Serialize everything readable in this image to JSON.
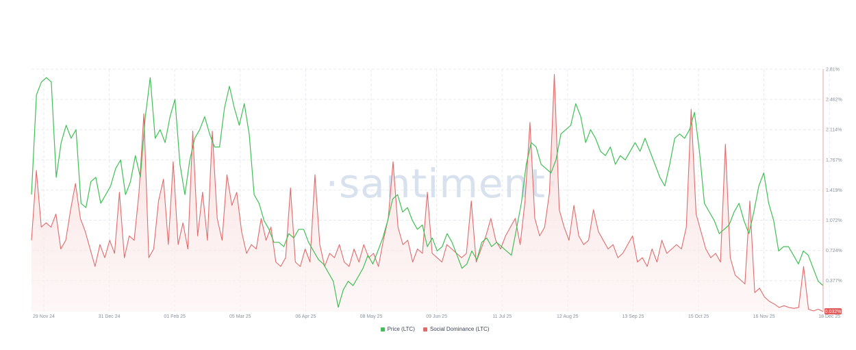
{
  "watermark": "·santiment·",
  "colors": {
    "price": "#3fbf54",
    "social": "#e06a6a",
    "social_fill": "#f7d6d6",
    "grid": "#e6e9ee",
    "axis": "#e9a3a3",
    "badge": "#e05a5a"
  },
  "legend": [
    {
      "label": "Price (LTC)",
      "color": "#3fbf54"
    },
    {
      "label": "Social Dominance (LTC)",
      "color": "#e06a6a"
    }
  ],
  "chart_data": {
    "type": "line",
    "x_tick_labels": [
      "29 Nov 24",
      "31 Dec 24",
      "01 Feb 25",
      "05 Mar 25",
      "06 Apr 25",
      "08 May 25",
      "09 Jun 25",
      "11 Jul 25",
      "12 Aug 25",
      "13 Sep 25",
      "15 Oct 25",
      "16 Nov 25",
      "18 Dec 25"
    ],
    "y_right_tick_labels": [
      "2.81%",
      "2.462%",
      "2.114%",
      "1.767%",
      "1.419%",
      "1.072%",
      "0.724%",
      "0.377%"
    ],
    "current_value_badge": "0.032%",
    "y_right_range": [
      0.032,
      2.81
    ],
    "grid": true,
    "legend_position": "bottom-center",
    "series": [
      {
        "name": "Price (LTC)",
        "axis": "hidden",
        "values": [
          1.4,
          2.55,
          2.7,
          2.75,
          2.7,
          1.6,
          2.0,
          2.2,
          2.05,
          2.15,
          1.3,
          1.25,
          1.55,
          1.6,
          1.3,
          1.4,
          1.5,
          1.7,
          1.8,
          1.4,
          1.55,
          1.85,
          1.6,
          2.3,
          2.75,
          2.05,
          2.15,
          2.0,
          2.3,
          2.5,
          1.75,
          1.4,
          1.8,
          2.05,
          2.15,
          2.3,
          2.1,
          1.95,
          1.95,
          2.4,
          2.65,
          2.4,
          2.2,
          2.45,
          2.1,
          1.4,
          1.3,
          1.1,
          1.0,
          0.85,
          0.85,
          0.8,
          0.95,
          0.9,
          1.0,
          1.0,
          0.85,
          0.75,
          0.65,
          0.6,
          0.5,
          0.4,
          0.1,
          0.3,
          0.4,
          0.35,
          0.45,
          0.55,
          0.7,
          0.6,
          0.75,
          0.9,
          1.1,
          1.35,
          1.4,
          1.2,
          1.25,
          1.1,
          1.0,
          1.05,
          0.8,
          0.9,
          0.75,
          0.8,
          0.95,
          0.85,
          0.7,
          0.55,
          0.6,
          0.75,
          0.65,
          0.85,
          0.9,
          0.8,
          0.85,
          0.8,
          0.75,
          0.7,
          1.0,
          1.3,
          1.75,
          2.0,
          1.95,
          1.75,
          1.7,
          1.65,
          1.8,
          2.1,
          2.15,
          2.2,
          2.45,
          2.3,
          2.0,
          2.15,
          2.05,
          1.9,
          1.85,
          1.95,
          1.75,
          1.85,
          1.8,
          1.9,
          2.0,
          1.9,
          2.05,
          1.9,
          1.75,
          1.6,
          1.5,
          1.75,
          2.05,
          2.1,
          2.05,
          2.15,
          2.35,
          1.9,
          1.3,
          1.2,
          1.1,
          0.95,
          1.0,
          1.05,
          1.2,
          1.3,
          1.1,
          0.95,
          1.2,
          1.5,
          1.65,
          1.3,
          1.1,
          0.75,
          0.8,
          0.8,
          0.7,
          0.6,
          0.75,
          0.7,
          0.55,
          0.4,
          0.35
        ]
      },
      {
        "name": "Social Dominance (LTC)",
        "axis": "right",
        "values": [
          0.85,
          1.65,
          1.0,
          1.05,
          1.0,
          1.15,
          0.75,
          0.85,
          1.2,
          1.5,
          1.1,
          0.95,
          0.75,
          0.55,
          0.8,
          0.65,
          0.85,
          0.7,
          1.4,
          0.65,
          0.9,
          0.85,
          1.4,
          2.3,
          0.65,
          0.75,
          1.3,
          1.55,
          0.8,
          1.75,
          0.8,
          1.05,
          0.75,
          2.1,
          0.9,
          1.4,
          0.85,
          2.1,
          1.1,
          0.85,
          1.6,
          1.25,
          1.4,
          0.95,
          0.7,
          0.8,
          0.75,
          1.1,
          0.85,
          1.0,
          0.6,
          0.55,
          0.65,
          1.45,
          0.6,
          0.55,
          0.75,
          0.6,
          1.6,
          0.8,
          0.55,
          0.7,
          0.65,
          0.8,
          0.6,
          0.55,
          0.75,
          0.6,
          0.8,
          0.65,
          0.7,
          0.55,
          0.85,
          1.1,
          1.75,
          1.0,
          0.8,
          0.85,
          0.6,
          0.75,
          0.7,
          1.4,
          0.7,
          0.65,
          0.6,
          0.8,
          0.75,
          0.7,
          0.65,
          0.7,
          1.3,
          0.6,
          0.75,
          0.9,
          1.1,
          0.85,
          0.75,
          0.9,
          1.0,
          1.1,
          0.8,
          1.3,
          2.2,
          1.1,
          0.9,
          1.0,
          1.4,
          2.75,
          1.2,
          1.0,
          0.85,
          1.25,
          0.9,
          0.8,
          0.85,
          1.2,
          0.95,
          0.85,
          0.75,
          0.8,
          0.65,
          0.7,
          0.8,
          0.9,
          0.6,
          0.65,
          0.55,
          0.75,
          0.6,
          0.85,
          0.7,
          0.75,
          0.8,
          0.75,
          1.0,
          2.35,
          1.15,
          0.95,
          0.75,
          0.65,
          0.7,
          0.6,
          1.95,
          0.65,
          0.45,
          0.4,
          0.35,
          1.3,
          0.25,
          0.3,
          0.2,
          0.15,
          0.12,
          0.08,
          0.1,
          0.08,
          0.07,
          0.08,
          0.55,
          0.06,
          0.04,
          0.06,
          0.032
        ]
      }
    ]
  }
}
